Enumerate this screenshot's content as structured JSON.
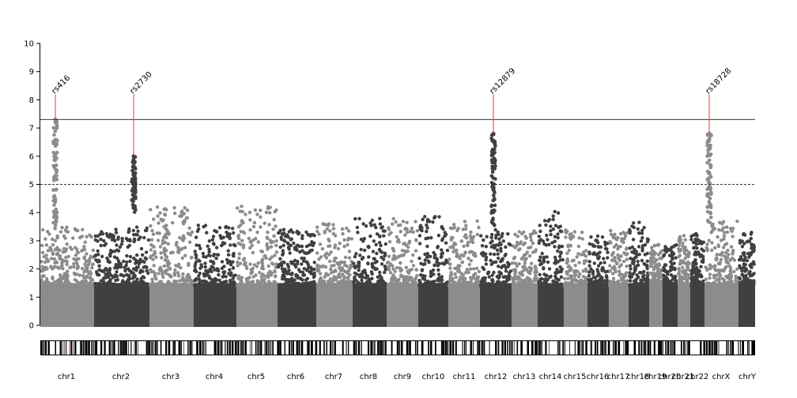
{
  "chart_data": {
    "type": "scatter",
    "subtype": "manhattan",
    "title": "",
    "xlabel": "",
    "ylabel": "",
    "ylim": [
      0,
      10
    ],
    "yticks": [
      0,
      1,
      2,
      3,
      4,
      5,
      6,
      7,
      8,
      9,
      10
    ],
    "grid": false,
    "legend": "none",
    "thresholds": [
      {
        "value": 7.3,
        "style": "solid"
      },
      {
        "value": 5.0,
        "style": "dashed"
      }
    ],
    "colors": {
      "odd": "#8c8c8c",
      "even": "#404040",
      "highlight": "#ff3333",
      "line": "#333333"
    },
    "chromosomes": [
      {
        "name": "chr1",
        "max": 3.5
      },
      {
        "name": "chr2",
        "max": 3.5
      },
      {
        "name": "chr3",
        "max": 4.2
      },
      {
        "name": "chr4",
        "max": 3.6
      },
      {
        "name": "chr5",
        "max": 4.3
      },
      {
        "name": "chr6",
        "max": 3.4
      },
      {
        "name": "chr7",
        "max": 3.7
      },
      {
        "name": "chr8",
        "max": 3.8
      },
      {
        "name": "chr9",
        "max": 3.8
      },
      {
        "name": "chr10",
        "max": 3.9
      },
      {
        "name": "chr11",
        "max": 3.7
      },
      {
        "name": "chr12",
        "max": 3.4
      },
      {
        "name": "chr13",
        "max": 3.4
      },
      {
        "name": "chr14",
        "max": 4.1
      },
      {
        "name": "chr15",
        "max": 3.4
      },
      {
        "name": "chr16",
        "max": 3.2
      },
      {
        "name": "chr17",
        "max": 3.4
      },
      {
        "name": "chr18",
        "max": 3.7
      },
      {
        "name": "chr19",
        "max": 2.9
      },
      {
        "name": "chr20",
        "max": 3.0
      },
      {
        "name": "chr21",
        "max": 3.2
      },
      {
        "name": "chr22",
        "max": 3.3
      },
      {
        "name": "chrX",
        "max": 3.7
      },
      {
        "name": "chrY",
        "max": 3.3
      }
    ],
    "chr_labels": [
      "chr1",
      "chr2",
      "chr3",
      "chr4",
      "chr5",
      "chr6",
      "chr7",
      "chr8",
      "chr9",
      "chr10",
      "chr11",
      "chr12",
      "chr13",
      "chr14",
      "chr15",
      "chr16",
      "chr17",
      "chr18",
      "chr19",
      "chr20",
      "chr21",
      "chr22",
      "chrX",
      "chrY"
    ],
    "peaks": [
      {
        "label": "rs416",
        "chromosome": "chr1",
        "peak_value": 7.3,
        "min_value": 3.4
      },
      {
        "label": "rs2730",
        "chromosome": "chr2",
        "peak_value": 6.0,
        "min_value": 4.0
      },
      {
        "label": "rs12879",
        "chromosome": "chr12",
        "peak_value": 6.8,
        "min_value": 3.4
      },
      {
        "label": "rs18728",
        "chromosome": "chrX",
        "peak_value": 6.8,
        "min_value": 3.6
      }
    ],
    "peak_marker_value": 8.2
  }
}
